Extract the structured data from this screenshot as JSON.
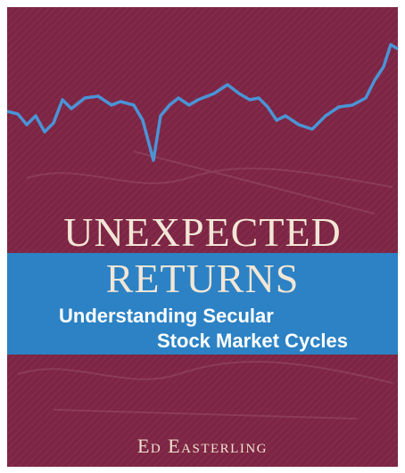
{
  "cover": {
    "title_lines": [
      "UNEXPECTED",
      "RETURNS"
    ],
    "subtitle_lines": [
      "Understanding Secular",
      "Stock Market Cycles"
    ],
    "author": "Ed Easterling"
  }
}
